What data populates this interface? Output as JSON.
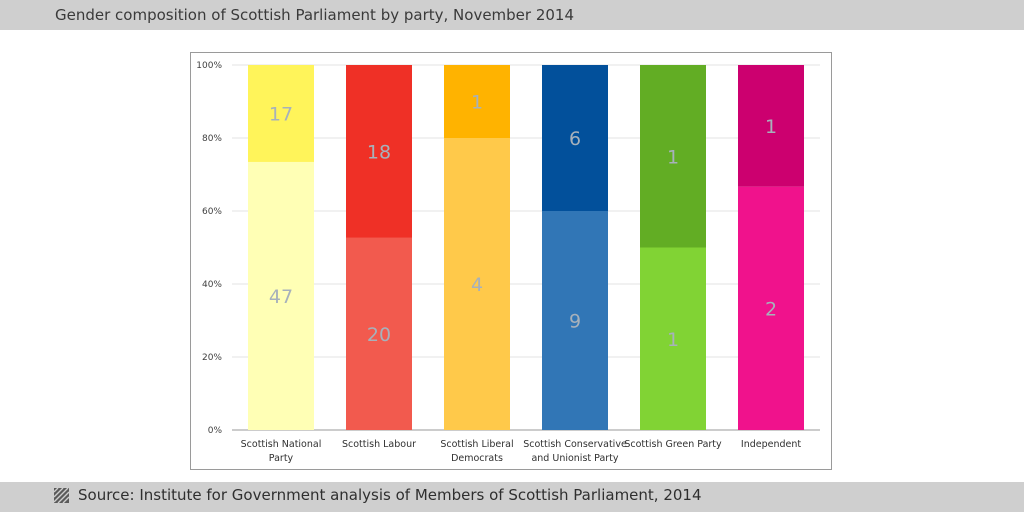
{
  "header": {
    "title": "Gender composition of Scottish Parliament by party, November 2014"
  },
  "footer": {
    "source": "Source: Institute for Government analysis of Members of Scottish Parliament, 2014"
  },
  "chart_data": {
    "type": "bar",
    "stacked": true,
    "normalized": true,
    "title": "",
    "xlabel": "",
    "ylabel": "",
    "ylim": [
      0,
      100
    ],
    "yticks": [
      "0%",
      "20%",
      "40%",
      "60%",
      "80%",
      "100%"
    ],
    "grid": true,
    "categories": [
      [
        "Scottish National",
        "Party"
      ],
      [
        "Scottish Labour"
      ],
      [
        "Scottish Liberal",
        "Democrats"
      ],
      [
        "Scottish Conservative",
        "and Unionist Party"
      ],
      [
        "Scottish Green Party"
      ],
      [
        "Independent"
      ]
    ],
    "series": [
      {
        "values": [
          47,
          20,
          4,
          9,
          1,
          2
        ],
        "colors": [
          "#ffffb5",
          "#f25a4e",
          "#ffc94a",
          "#3176b6",
          "#81d334",
          "#f0128c"
        ]
      },
      {
        "values": [
          17,
          18,
          1,
          6,
          1,
          1
        ],
        "colors": [
          "#fff45a",
          "#ef3026",
          "#ffb300",
          "#02509b",
          "#62ad24",
          "#cc006f"
        ]
      }
    ],
    "label_color": "#a7b1bb"
  }
}
